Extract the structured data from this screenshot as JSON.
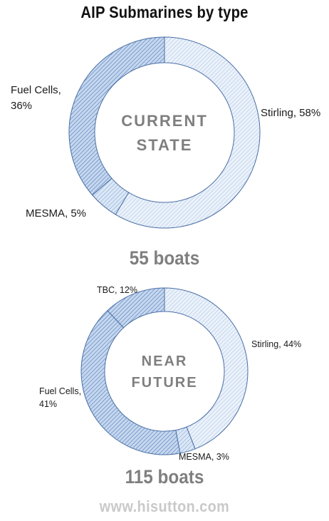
{
  "title": "AIP Submarines by type",
  "chart_data": [
    {
      "type": "pie",
      "center_label": [
        "CURRENT",
        "STATE"
      ],
      "total_label": "55 boats",
      "series": [
        {
          "name": "Stirling",
          "value": 58,
          "label": "Stirling, 58%"
        },
        {
          "name": "MESMA",
          "value": 5,
          "label": "MESMA, 5%"
        },
        {
          "name": "Fuel Cells",
          "value": 36,
          "label": [
            "Fuel Cells,",
            "36%"
          ]
        }
      ]
    },
    {
      "type": "pie",
      "center_label": [
        "NEAR",
        "FUTURE"
      ],
      "total_label": "115 boats",
      "series": [
        {
          "name": "Stirling",
          "value": 44,
          "label": "Stirling, 44%"
        },
        {
          "name": "MESMA",
          "value": 3,
          "label": "MESMA, 3%"
        },
        {
          "name": "Fuel Cells",
          "value": 41,
          "label": [
            "Fuel Cells,",
            "41%"
          ]
        },
        {
          "name": "TBC",
          "value": 12,
          "label": "TBC, 12%"
        }
      ]
    }
  ],
  "watermark": "www.hisutton.com",
  "colors": {
    "Stirling": "#dde8f5",
    "MESMA": "#d2e1f3",
    "Fuel Cells": "#b4cbe8",
    "TBC": "#b4cbe8",
    "stroke": "#4a6fa5",
    "center_text": "#7f7f7f",
    "label_text": "#1a1a1a",
    "hatch": "#6f90c0"
  }
}
